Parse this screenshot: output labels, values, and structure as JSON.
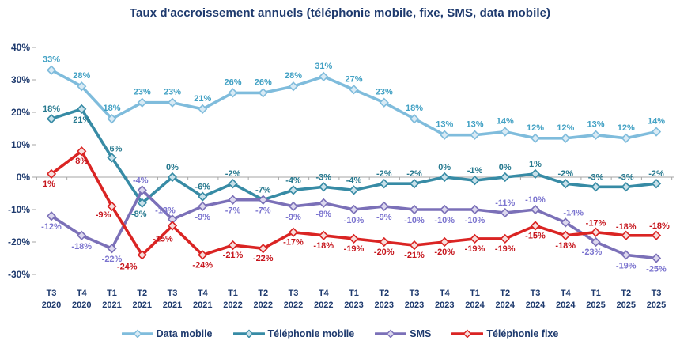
{
  "title": "Taux d'accroissement annuels (téléphonie mobile, fixe, SMS, data mobile)",
  "colors": {
    "title_text": "#1E3A6E",
    "axis_text": "#1E3A6E",
    "axis_line": "#A6A6A6"
  },
  "chart_data": {
    "type": "line",
    "title": "Taux d'accroissement annuels (téléphonie mobile, fixe, SMS, data mobile)",
    "xlabel": "",
    "ylabel": "",
    "ylim": [
      -30,
      40
    ],
    "yticks": [
      40,
      30,
      20,
      10,
      0,
      -10,
      -20,
      -30
    ],
    "ytick_suffix": "%",
    "grid": "zero-line-only",
    "legend_position": "bottom",
    "data_labels": "shown, value with % suffix",
    "categories": [
      {
        "quarter": "T3",
        "year": "2020"
      },
      {
        "quarter": "T4",
        "year": "2020"
      },
      {
        "quarter": "T1",
        "year": "2021"
      },
      {
        "quarter": "T2",
        "year": "2021"
      },
      {
        "quarter": "T3",
        "year": "2021"
      },
      {
        "quarter": "T4",
        "year": "2021"
      },
      {
        "quarter": "T1",
        "year": "2022"
      },
      {
        "quarter": "T2",
        "year": "2022"
      },
      {
        "quarter": "T3",
        "year": "2022"
      },
      {
        "quarter": "T4",
        "year": "2022"
      },
      {
        "quarter": "T1",
        "year": "2023"
      },
      {
        "quarter": "T2",
        "year": "2023"
      },
      {
        "quarter": "T3",
        "year": "2023"
      },
      {
        "quarter": "T4",
        "year": "2023"
      },
      {
        "quarter": "T1",
        "year": "2024"
      },
      {
        "quarter": "T2",
        "year": "2024"
      },
      {
        "quarter": "T3",
        "year": "2024"
      },
      {
        "quarter": "T4",
        "year": "2024"
      },
      {
        "quarter": "T1",
        "year": "2025"
      },
      {
        "quarter": "T2",
        "year": "2025"
      },
      {
        "quarter": "T3",
        "year": "2025"
      }
    ],
    "series": [
      {
        "id": "data_mobile",
        "name": "Data mobile",
        "color": "#7FBCDC",
        "label_color": "#42A1C4",
        "marker_fill": "#D9EBF5",
        "values": [
          33,
          28,
          18,
          23,
          23,
          21,
          26,
          26,
          28,
          31,
          27,
          23,
          18,
          13,
          13,
          14,
          12,
          12,
          13,
          12,
          14
        ]
      },
      {
        "id": "telephonie_mobile",
        "name": "Téléphonie mobile",
        "color": "#378BA5",
        "label_color": "#27798F",
        "marker_fill": "#C9E1EA",
        "values": [
          18,
          21,
          6,
          -8,
          0,
          -6,
          -2,
          -7,
          -4,
          -3,
          -4,
          -2,
          -2,
          0,
          -1,
          0,
          1,
          -2,
          -3,
          -3,
          -2
        ]
      },
      {
        "id": "sms",
        "name": "SMS",
        "color": "#7B70B8",
        "label_color": "#7B74CF",
        "marker_fill": "#DCD8EE",
        "values": [
          -12,
          -18,
          -22,
          -4,
          -13,
          -9,
          -7,
          -7,
          -9,
          -8,
          -10,
          -9,
          -10,
          -10,
          -10,
          -11,
          -10,
          -14,
          -23,
          -19,
          -25
        ]
      },
      {
        "id": "telephonie_fixe",
        "name": "Téléphonie fixe",
        "color": "#DA2423",
        "label_color": "#C6161D",
        "marker_fill": "#F7DEDC",
        "values": [
          1,
          8,
          -9,
          -24,
          -15,
          -24,
          -21,
          -22,
          -17,
          -18,
          -19,
          -20,
          -21,
          -20,
          -19,
          -19,
          -15,
          -18,
          -17,
          -18,
          -18
        ]
      }
    ]
  }
}
